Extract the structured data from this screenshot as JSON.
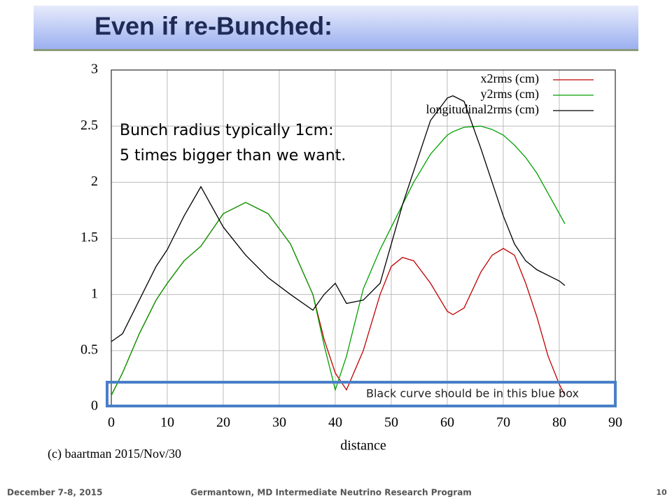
{
  "header": {
    "title": "Even if re-Bunched:"
  },
  "chart_data": {
    "type": "line",
    "x": [
      0,
      2,
      5,
      8,
      10,
      13,
      16,
      20,
      24,
      28,
      32,
      36,
      38,
      40,
      42,
      45,
      48,
      50,
      52,
      54,
      57,
      60,
      61,
      63,
      66,
      68,
      70,
      72,
      74,
      76,
      78,
      80,
      81
    ],
    "series": [
      {
        "name": "x2rms (cm)",
        "color": "#c00000",
        "values": [
          0.1,
          0.3,
          0.65,
          0.95,
          1.1,
          1.3,
          1.43,
          1.72,
          1.82,
          1.72,
          1.45,
          1.0,
          0.6,
          0.3,
          0.15,
          0.5,
          1.0,
          1.25,
          1.33,
          1.3,
          1.1,
          0.85,
          0.82,
          0.88,
          1.2,
          1.35,
          1.41,
          1.35,
          1.1,
          0.8,
          0.45,
          0.2,
          0.1
        ]
      },
      {
        "name": "y2rms (cm)",
        "color": "#00a000",
        "values": [
          0.1,
          0.3,
          0.65,
          0.95,
          1.1,
          1.3,
          1.43,
          1.72,
          1.82,
          1.72,
          1.45,
          1.0,
          0.55,
          0.15,
          0.45,
          1.05,
          1.4,
          1.6,
          1.8,
          2.0,
          2.25,
          2.42,
          2.45,
          2.49,
          2.5,
          2.47,
          2.42,
          2.33,
          2.22,
          2.08,
          1.9,
          1.72,
          1.63
        ]
      },
      {
        "name": "longitudinal2rms (cm)",
        "color": "#000000",
        "values": [
          0.58,
          0.65,
          0.95,
          1.25,
          1.4,
          1.7,
          1.96,
          1.6,
          1.35,
          1.15,
          1.0,
          0.86,
          1.0,
          1.1,
          0.92,
          0.95,
          1.1,
          1.45,
          1.8,
          2.1,
          2.55,
          2.75,
          2.77,
          2.72,
          2.3,
          2.0,
          1.7,
          1.45,
          1.3,
          1.22,
          1.17,
          1.12,
          1.08
        ]
      }
    ],
    "xlim": [
      0,
      90
    ],
    "xticks": [
      0,
      10,
      20,
      30,
      40,
      50,
      60,
      70,
      80,
      90
    ],
    "ylim": [
      0,
      3
    ],
    "yticks": [
      0,
      0.5,
      1,
      1.5,
      2,
      2.5,
      3
    ],
    "x_label": "distance",
    "grid": true,
    "legend": "upper right",
    "annotations": [
      "Bunch radius typically 1cm:",
      "5 times bigger than we want.",
      "Black curve should be in this blue box",
      "(c) baartman  2015/Nov/30"
    ]
  },
  "footer": {
    "date": "December 7-8, 2015",
    "event": "Germantown, MD  Intermediate Neutrino Research Program",
    "page": "10"
  }
}
